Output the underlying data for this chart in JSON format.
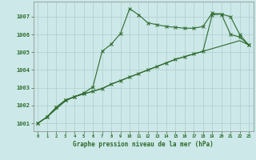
{
  "x_ticks": [
    0,
    1,
    2,
    3,
    4,
    5,
    6,
    7,
    8,
    9,
    10,
    11,
    12,
    13,
    14,
    15,
    16,
    17,
    18,
    19,
    20,
    21,
    22,
    23
  ],
  "line1_y": [
    1001.0,
    1001.35,
    1001.8,
    1002.25,
    1002.5,
    1002.65,
    1002.8,
    1002.95,
    1003.2,
    1003.4,
    1003.6,
    1003.8,
    1004.0,
    1004.2,
    1004.4,
    1004.6,
    1004.75,
    1004.9,
    1005.05,
    1005.2,
    1005.35,
    1005.5,
    1005.65,
    1005.4
  ],
  "line2_y": [
    1001.0,
    1001.35,
    1001.9,
    1002.3,
    1002.5,
    1002.65,
    1002.8,
    1002.95,
    1003.2,
    1003.4,
    1003.6,
    1003.8,
    1004.0,
    1004.2,
    1004.4,
    1004.6,
    1004.75,
    1004.9,
    1005.05,
    1007.1,
    1007.15,
    1007.0,
    1006.0,
    1005.4
  ],
  "line3_y": [
    1001.0,
    1001.35,
    1001.9,
    1002.3,
    1002.5,
    1002.7,
    1003.05,
    1005.05,
    1005.45,
    1006.05,
    1007.45,
    1007.1,
    1006.65,
    1006.55,
    1006.45,
    1006.4,
    1006.35,
    1006.35,
    1006.45,
    1007.2,
    1007.15,
    1006.0,
    1005.85,
    1005.4
  ],
  "bg_color": "#cce8e8",
  "line_color": "#2d6a2d",
  "grid_color": "#b0cccc",
  "xlabel": "Graphe pression niveau de la mer (hPa)",
  "ylim_min": 1000.55,
  "ylim_max": 1007.85,
  "yticks": [
    1001,
    1002,
    1003,
    1004,
    1005,
    1006,
    1007
  ]
}
